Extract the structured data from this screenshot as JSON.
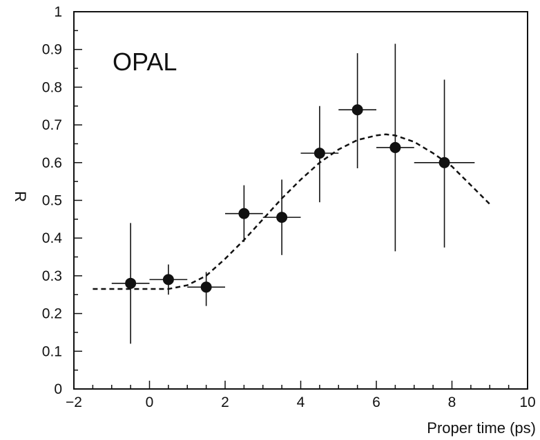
{
  "chart_data": {
    "type": "scatter",
    "title": "",
    "annotation": "OPAL",
    "xlabel": "Proper time (ps)",
    "ylabel": "R",
    "xlim": [
      -2,
      10
    ],
    "ylim": [
      0,
      1
    ],
    "x_ticks": [
      "−2",
      "0",
      "2",
      "4",
      "6",
      "8",
      "10"
    ],
    "y_ticks": [
      "0",
      "0.1",
      "0.2",
      "0.3",
      "0.4",
      "0.5",
      "0.6",
      "0.7",
      "0.8",
      "0.9",
      "1"
    ],
    "grid": false,
    "series": [
      {
        "kind": "points-with-errorbars",
        "points": [
          {
            "x": -0.5,
            "y": 0.28,
            "xerr": 0.5,
            "ylo": 0.12,
            "yhi": 0.44
          },
          {
            "x": 0.5,
            "y": 0.29,
            "xerr": 0.5,
            "ylo": 0.25,
            "yhi": 0.33
          },
          {
            "x": 1.5,
            "y": 0.27,
            "xerr": 0.5,
            "ylo": 0.22,
            "yhi": 0.31
          },
          {
            "x": 2.5,
            "y": 0.465,
            "xerr": 0.5,
            "ylo": 0.39,
            "yhi": 0.54
          },
          {
            "x": 3.5,
            "y": 0.455,
            "xerr": 0.5,
            "ylo": 0.355,
            "yhi": 0.555
          },
          {
            "x": 4.5,
            "y": 0.625,
            "xerr": 0.5,
            "ylo": 0.495,
            "yhi": 0.75
          },
          {
            "x": 5.5,
            "y": 0.74,
            "xerr": 0.5,
            "ylo": 0.585,
            "yhi": 0.89
          },
          {
            "x": 6.5,
            "y": 0.64,
            "xerr": 0.5,
            "ylo": 0.365,
            "yhi": 0.915
          },
          {
            "x": 7.8,
            "y": 0.6,
            "xerr": 0.8,
            "ylo": 0.375,
            "yhi": 0.82
          }
        ]
      },
      {
        "kind": "dashed-curve",
        "points": [
          {
            "x": -1.5,
            "y": 0.265
          },
          {
            "x": -0.5,
            "y": 0.265
          },
          {
            "x": 0.5,
            "y": 0.265
          },
          {
            "x": 1.0,
            "y": 0.275
          },
          {
            "x": 1.5,
            "y": 0.3
          },
          {
            "x": 2.0,
            "y": 0.345
          },
          {
            "x": 2.5,
            "y": 0.395
          },
          {
            "x": 3.0,
            "y": 0.45
          },
          {
            "x": 3.5,
            "y": 0.505
          },
          {
            "x": 4.0,
            "y": 0.555
          },
          {
            "x": 4.5,
            "y": 0.6
          },
          {
            "x": 5.0,
            "y": 0.635
          },
          {
            "x": 5.5,
            "y": 0.66
          },
          {
            "x": 6.0,
            "y": 0.672
          },
          {
            "x": 6.25,
            "y": 0.675
          },
          {
            "x": 6.5,
            "y": 0.672
          },
          {
            "x": 7.0,
            "y": 0.655
          },
          {
            "x": 7.5,
            "y": 0.625
          },
          {
            "x": 8.0,
            "y": 0.59
          },
          {
            "x": 8.5,
            "y": 0.54
          },
          {
            "x": 9.0,
            "y": 0.49
          }
        ]
      }
    ]
  }
}
